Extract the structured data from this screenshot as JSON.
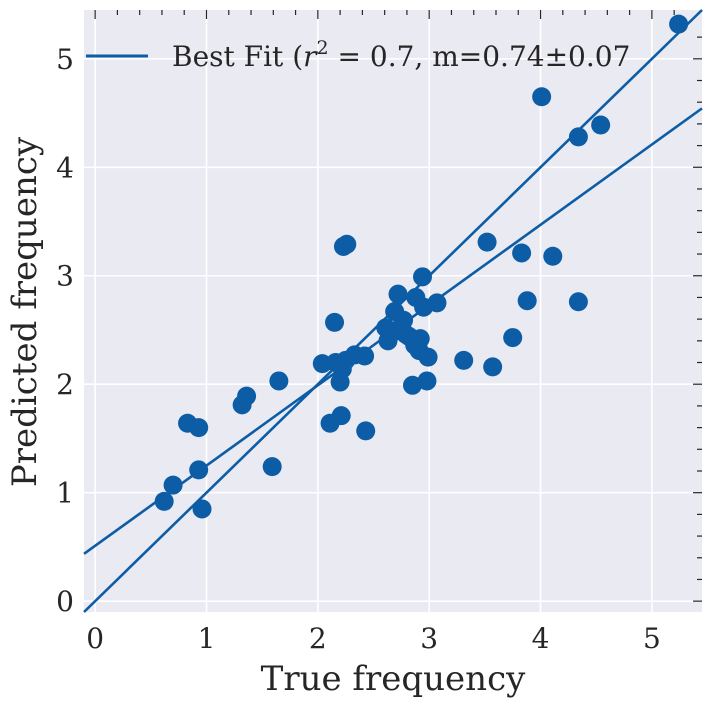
{
  "chart_data": {
    "type": "scatter",
    "xlabel": "True frequency",
    "ylabel": "Predicted frequency",
    "xlim": [
      -0.1,
      5.45
    ],
    "ylim": [
      -0.1,
      5.45
    ],
    "x_ticks": [
      "0",
      "1",
      "2",
      "3",
      "4",
      "5"
    ],
    "y_ticks": [
      "0",
      "1",
      "2",
      "3",
      "4",
      "5"
    ],
    "grid": true,
    "legend_position": "top-left",
    "marker_color": "#0c5da5",
    "line_color": "#0c5da5",
    "background_color": "#eaeaf2",
    "legend": {
      "prefix": "Best Fit (",
      "r_symbol": "r",
      "superscript": "2",
      "suffix": " =  0.7, m=0.74±0.07"
    },
    "points": [
      [
        0.62,
        0.92
      ],
      [
        0.7,
        1.07
      ],
      [
        0.83,
        1.64
      ],
      [
        0.93,
        1.6
      ],
      [
        0.93,
        1.21
      ],
      [
        0.96,
        0.85
      ],
      [
        1.32,
        1.81
      ],
      [
        1.36,
        1.89
      ],
      [
        1.59,
        1.24
      ],
      [
        1.65,
        2.03
      ],
      [
        2.04,
        2.19
      ],
      [
        2.11,
        1.64
      ],
      [
        2.15,
        2.57
      ],
      [
        2.16,
        2.2
      ],
      [
        2.2,
        2.02
      ],
      [
        2.21,
        1.71
      ],
      [
        2.22,
        2.14
      ],
      [
        2.23,
        3.27
      ],
      [
        2.26,
        3.29
      ],
      [
        2.25,
        2.22
      ],
      [
        2.33,
        2.27
      ],
      [
        2.42,
        2.26
      ],
      [
        2.43,
        1.57
      ],
      [
        2.61,
        2.52
      ],
      [
        2.63,
        2.4
      ],
      [
        2.66,
        2.47
      ],
      [
        2.69,
        2.67
      ],
      [
        2.72,
        2.83
      ],
      [
        2.75,
        2.53
      ],
      [
        2.77,
        2.59
      ],
      [
        2.79,
        2.46
      ],
      [
        2.82,
        2.44
      ],
      [
        2.85,
        1.99
      ],
      [
        2.87,
        2.36
      ],
      [
        2.88,
        2.8
      ],
      [
        2.91,
        2.31
      ],
      [
        2.92,
        2.42
      ],
      [
        2.94,
        2.99
      ],
      [
        2.95,
        2.71
      ],
      [
        2.98,
        2.03
      ],
      [
        2.99,
        2.25
      ],
      [
        3.07,
        2.75
      ],
      [
        3.31,
        2.22
      ],
      [
        3.52,
        3.31
      ],
      [
        3.57,
        2.16
      ],
      [
        3.75,
        2.43
      ],
      [
        3.83,
        3.21
      ],
      [
        3.88,
        2.77
      ],
      [
        4.01,
        4.65
      ],
      [
        4.11,
        3.18
      ],
      [
        4.34,
        2.76
      ],
      [
        4.34,
        4.28
      ],
      [
        4.54,
        4.39
      ],
      [
        5.24,
        5.32
      ]
    ],
    "lines": [
      {
        "slope": 1.0,
        "intercept": 0.0
      },
      {
        "slope": 0.74,
        "intercept": 0.51
      }
    ]
  }
}
